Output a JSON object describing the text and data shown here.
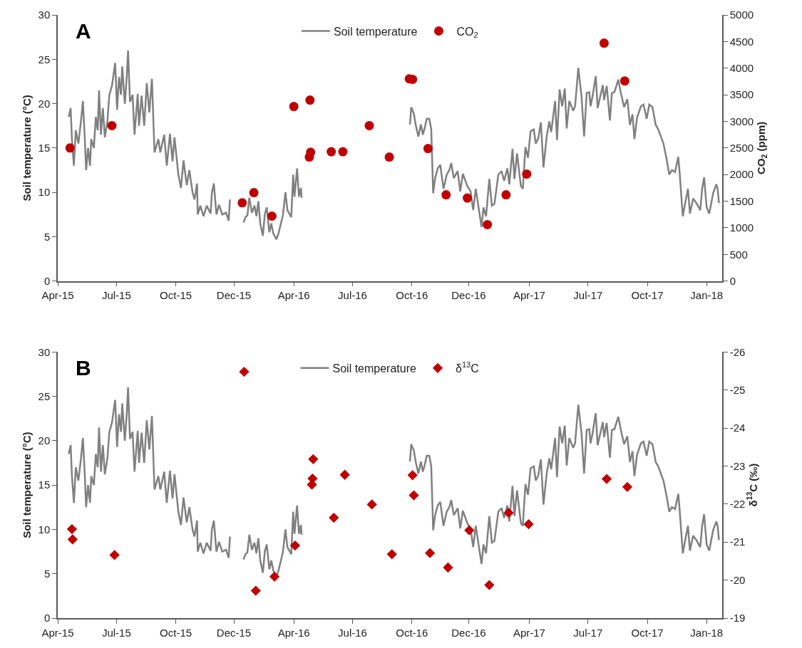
{
  "chart_data": [
    {
      "type": "line",
      "title": "A",
      "ylabel": "Soil temperature (°C)",
      "y2label": "CO$_{2}$ (ppm)",
      "legend": "top",
      "xlim": [
        "2015-04-01",
        "2018-01-25"
      ],
      "xticks": [
        {
          "value": "2015-04-01",
          "label": "Apr-15"
        },
        {
          "value": "2015-07-01",
          "label": "Jul-15"
        },
        {
          "value": "2015-10-01",
          "label": "Oct-15"
        },
        {
          "value": "2015-12-30",
          "label": "Dec-15"
        },
        {
          "value": "2016-04-01",
          "label": "Apr-16"
        },
        {
          "value": "2016-07-01",
          "label": "Jul-16"
        },
        {
          "value": "2016-10-01",
          "label": "Oct-16"
        },
        {
          "value": "2016-12-28",
          "label": "Dec-16"
        },
        {
          "value": "2017-04-01",
          "label": "Apr-17"
        },
        {
          "value": "2017-07-01",
          "label": "Jul-17"
        },
        {
          "value": "2017-10-01",
          "label": "Oct-17"
        },
        {
          "value": "2018-01-01",
          "label": "Jan-18"
        }
      ],
      "ylim": [
        0,
        30
      ],
      "yticks": [
        0,
        5,
        10,
        15,
        20,
        25,
        30
      ],
      "y2lim": [
        0,
        5000
      ],
      "y2ticks": [
        0,
        500,
        1000,
        1500,
        2000,
        2500,
        3000,
        3500,
        4000,
        4500,
        5000
      ],
      "series": [
        {
          "name": "Soil temperature",
          "color": "#808080",
          "x": [
            "2015-04-18",
            "2015-04-21",
            "2015-04-23",
            "2015-04-26",
            "2015-04-29",
            "2015-05-03",
            "2015-05-07",
            "2015-05-10",
            "2015-05-13",
            "2015-05-15",
            "2015-05-18",
            "2015-05-21",
            "2015-05-23",
            "2015-05-27",
            "2015-05-30",
            "2015-06-02",
            "2015-06-04",
            "2015-06-07",
            "2015-06-10",
            "2015-06-13",
            "2015-06-17",
            "2015-06-20",
            "2015-06-24",
            "2015-06-29",
            "2015-07-02",
            "2015-07-05",
            "2015-07-08",
            "2015-07-10",
            "2015-07-14",
            "2015-07-17",
            "2015-07-19",
            "2015-07-22",
            "2015-07-26",
            "2015-07-29",
            "2015-08-03",
            "2015-08-05",
            "2015-08-09",
            "2015-08-13",
            "2015-08-17",
            "2015-08-21",
            "2015-08-25",
            "2015-08-29",
            "2015-09-04",
            "2015-09-07",
            "2015-09-13",
            "2015-09-17",
            "2015-09-22",
            "2015-09-26",
            "2015-09-29",
            "2015-10-05",
            "2015-10-09",
            "2015-10-13",
            "2015-10-18",
            "2015-10-22",
            "2015-10-27",
            "2015-10-30",
            "2015-11-03",
            "2015-11-04",
            "2015-11-08",
            "2015-11-13",
            "2015-11-18",
            "2015-11-24",
            "2015-11-26",
            "2015-11-29",
            "2015-12-03",
            "2015-12-07",
            "2015-12-12",
            "2015-12-18",
            "2015-12-22",
            "2015-12-24",
            "2016-01-01",
            "2016-01-14",
            "2016-01-17",
            "2016-01-20",
            "2016-01-23",
            "2016-01-27",
            "2016-01-31",
            "2016-02-03",
            "2016-02-06",
            "2016-02-09",
            "2016-02-13",
            "2016-02-16",
            "2016-02-19",
            "2016-02-23",
            "2016-02-26",
            "2016-02-29",
            "2016-03-05",
            "2016-03-08",
            "2016-03-12",
            "2016-03-15",
            "2016-03-19",
            "2016-03-22",
            "2016-03-28",
            "2016-03-31",
            "2016-04-02",
            "2016-04-06",
            "2016-04-09",
            "2016-04-12",
            "2016-04-13",
            "2016-06-01",
            "2016-09-28",
            "2016-09-30",
            "2016-10-04",
            "2016-10-07",
            "2016-10-11",
            "2016-10-15",
            "2016-10-18",
            "2016-10-21",
            "2016-10-24",
            "2016-10-28",
            "2016-10-31",
            "2016-11-03",
            "2016-11-06",
            "2016-11-10",
            "2016-11-14",
            "2016-11-19",
            "2016-11-24",
            "2016-11-28",
            "2016-12-01",
            "2016-12-05",
            "2016-12-11",
            "2016-12-15",
            "2016-12-19",
            "2016-12-26",
            "2016-12-31",
            "2017-01-04",
            "2017-01-08",
            "2017-01-13",
            "2017-01-17",
            "2017-01-20",
            "2017-01-24",
            "2017-01-29",
            "2017-02-02",
            "2017-02-06",
            "2017-02-12",
            "2017-02-17",
            "2017-02-21",
            "2017-02-26",
            "2017-03-01",
            "2017-03-06",
            "2017-03-09",
            "2017-03-13",
            "2017-03-19",
            "2017-03-22",
            "2017-03-26",
            "2017-03-30",
            "2017-04-03",
            "2017-04-08",
            "2017-04-11",
            "2017-04-15",
            "2017-04-19",
            "2017-04-23",
            "2017-04-28",
            "2017-05-02",
            "2017-05-05",
            "2017-05-11",
            "2017-05-14",
            "2017-05-18",
            "2017-05-22",
            "2017-05-26",
            "2017-05-29",
            "2017-06-02",
            "2017-06-08",
            "2017-06-11",
            "2017-06-16",
            "2017-06-21",
            "2017-06-25",
            "2017-06-29",
            "2017-07-03",
            "2017-07-05",
            "2017-07-08",
            "2017-07-13",
            "2017-07-16",
            "2017-07-20",
            "2017-07-24",
            "2017-07-26",
            "2017-07-30",
            "2017-08-04",
            "2017-08-07",
            "2017-08-11",
            "2017-08-17",
            "2017-08-21",
            "2017-08-26",
            "2017-08-31",
            "2017-09-04",
            "2017-09-08",
            "2017-09-11",
            "2017-09-15",
            "2017-09-21",
            "2017-09-25",
            "2017-09-30",
            "2017-10-04",
            "2017-10-09",
            "2017-10-14",
            "2017-10-18",
            "2017-10-22",
            "2017-10-26",
            "2017-10-31",
            "2017-11-04",
            "2017-11-08",
            "2017-11-13",
            "2017-11-18",
            "2017-11-20",
            "2017-11-25",
            "2017-11-30",
            "2017-12-03",
            "2017-12-06",
            "2017-12-11",
            "2017-12-16",
            "2017-12-22",
            "2017-12-25",
            "2017-12-28",
            "2018-01-01",
            "2018-01-05",
            "2018-01-11",
            "2018-01-16",
            "2018-01-18",
            "2018-01-20"
          ],
          "values": [
            18.5,
            19.5,
            16,
            13,
            17,
            15.5,
            18,
            20.3,
            16,
            12.5,
            15,
            13,
            16,
            15,
            18.5,
            17,
            21.5,
            16.5,
            19.5,
            16.2,
            18,
            21,
            22,
            24.6,
            19.3,
            23,
            21,
            24.2,
            20,
            23,
            26,
            20.2,
            21,
            16.5,
            21.1,
            17.5,
            20.9,
            17.5,
            22.3,
            19,
            22.8,
            14.5,
            16,
            14.5,
            16.5,
            13,
            16.6,
            13.5,
            16.2,
            12,
            10.5,
            13.6,
            10.8,
            12.5,
            10,
            9.2,
            11,
            7.5,
            8.5,
            7.3,
            8.5,
            7.6,
            10,
            11,
            7.5,
            8.6,
            7.5,
            7.7,
            6.8,
            9.2,
            null,
            6.6,
            7.2,
            7.4,
            9.4,
            7.7,
            8.5,
            7.3,
            9,
            6.5,
            5.1,
            7.5,
            8.3,
            5.5,
            6.5,
            5.4,
            4.7,
            5.3,
            6.5,
            7.4,
            10,
            8,
            7.2,
            12,
            9.5,
            12.7,
            9.5,
            10.5,
            9.4,
            null,
            17.65,
            19.6,
            18.9,
            17.6,
            16.3,
            17.65,
            16.5,
            17.3,
            18.3,
            18.3,
            17.1,
            9.9,
            11.6,
            12.7,
            13.1,
            10.4,
            12,
            12.5,
            13.3,
            11.6,
            12.4,
            10.1,
            12.1,
            10.7,
            10.1,
            8,
            10.4,
            8,
            6.1,
            8.3,
            7.3,
            11.5,
            8.5,
            8.7,
            12,
            12.4,
            11.3,
            12.7,
            10.9,
            14.9,
            11.5,
            14.4,
            10.7,
            10.4,
            15.1,
            13.9,
            16.9,
            17.1,
            15.5,
            16.1,
            17.9,
            12.8,
            16.3,
            18,
            16.8,
            20.3,
            15.9,
            21.6,
            19.7,
            21.7,
            17.2,
            20.3,
            19.2,
            19.7,
            24.05,
            20.8,
            16.3,
            21.2,
            21.3,
            19.7,
            20.8,
            23.1,
            19.5,
            20.8,
            22.1,
            20.4,
            22,
            18.1,
            21.2,
            21.3,
            22.7,
            21.2,
            19.6,
            20.5,
            17.6,
            18.8,
            16,
            18.4,
            19.7,
            19.9,
            18.3,
            19.9,
            19.6,
            17.6,
            17.1,
            16.3,
            15.5,
            13.7,
            12,
            12.5,
            12.3,
            14,
            12.3,
            7.3,
            9.3,
            10.4,
            7.6,
            9.3,
            8.8,
            8,
            10.4,
            11.7,
            8.3,
            7.6,
            9.9,
            10.9,
            10.4,
            8.8
          ]
        },
        {
          "name": "CO$_{2}$",
          "type": "scatter",
          "axis": "y2",
          "marker": "circle",
          "color": "#c00000",
          "x": [
            "2015-04-20",
            "2015-06-24",
            "2016-01-12",
            "2016-01-30",
            "2016-02-27",
            "2016-04-01",
            "2016-04-26",
            "2016-04-27",
            "2016-04-25",
            "2016-05-29",
            "2016-06-16",
            "2016-07-27",
            "2016-08-27",
            "2016-09-27",
            "2016-10-02",
            "2016-10-26",
            "2016-11-23",
            "2016-12-26",
            "2017-01-26",
            "2017-02-24",
            "2017-03-28",
            "2017-07-26",
            "2017-08-27"
          ],
          "values": [
            2500,
            2920,
            1470,
            1660,
            1220,
            3280,
            3400,
            2420,
            2330,
            2430,
            2430,
            2920,
            2330,
            3800,
            3790,
            2490,
            1620,
            1560,
            1060,
            1620,
            2010,
            4470,
            3760
          ]
        }
      ]
    },
    {
      "type": "line",
      "title": "B",
      "ylabel": "Soil temperature (°C)",
      "y2label": "δ$^{13}$C (‰)",
      "legend": "top",
      "xlim": [
        "2015-04-01",
        "2018-01-25"
      ],
      "xticks": [
        {
          "value": "2015-04-01",
          "label": "Apr-15"
        },
        {
          "value": "2015-07-01",
          "label": "Jul-15"
        },
        {
          "value": "2015-10-01",
          "label": "Oct-15"
        },
        {
          "value": "2015-12-30",
          "label": "Dec-15"
        },
        {
          "value": "2016-04-01",
          "label": "Apr-16"
        },
        {
          "value": "2016-07-01",
          "label": "Jul-16"
        },
        {
          "value": "2016-10-01",
          "label": "Oct-16"
        },
        {
          "value": "2016-12-28",
          "label": "Dec-16"
        },
        {
          "value": "2017-04-01",
          "label": "Apr-17"
        },
        {
          "value": "2017-07-01",
          "label": "Jul-17"
        },
        {
          "value": "2017-10-01",
          "label": "Oct-17"
        },
        {
          "value": "2018-01-01",
          "label": "Jan-18"
        }
      ],
      "ylim": [
        0,
        30
      ],
      "yticks": [
        0,
        5,
        10,
        15,
        20,
        25,
        30
      ],
      "y2lim": [
        -19,
        -26
      ],
      "y2ticks": [
        -19,
        -20,
        -21,
        -22,
        -23,
        -24,
        -25,
        -26
      ],
      "series": [
        {
          "name": "Soil temperature",
          "color": "#808080",
          "x": [
            "2015-04-18",
            "2015-04-21",
            "2015-04-23",
            "2015-04-26",
            "2015-04-29",
            "2015-05-03",
            "2015-05-07",
            "2015-05-10",
            "2015-05-13",
            "2015-05-15",
            "2015-05-18",
            "2015-05-21",
            "2015-05-23",
            "2015-05-27",
            "2015-05-30",
            "2015-06-02",
            "2015-06-04",
            "2015-06-07",
            "2015-06-10",
            "2015-06-13",
            "2015-06-17",
            "2015-06-20",
            "2015-06-24",
            "2015-06-29",
            "2015-07-02",
            "2015-07-05",
            "2015-07-08",
            "2015-07-10",
            "2015-07-14",
            "2015-07-17",
            "2015-07-19",
            "2015-07-22",
            "2015-07-26",
            "2015-07-29",
            "2015-08-03",
            "2015-08-05",
            "2015-08-09",
            "2015-08-13",
            "2015-08-17",
            "2015-08-21",
            "2015-08-25",
            "2015-08-29",
            "2015-09-04",
            "2015-09-07",
            "2015-09-13",
            "2015-09-17",
            "2015-09-22",
            "2015-09-26",
            "2015-09-29",
            "2015-10-05",
            "2015-10-09",
            "2015-10-13",
            "2015-10-18",
            "2015-10-22",
            "2015-10-27",
            "2015-10-30",
            "2015-11-03",
            "2015-11-04",
            "2015-11-08",
            "2015-11-13",
            "2015-11-18",
            "2015-11-24",
            "2015-11-26",
            "2015-11-29",
            "2015-12-03",
            "2015-12-07",
            "2015-12-12",
            "2015-12-18",
            "2015-12-22",
            "2015-12-24",
            "2016-01-01",
            "2016-01-14",
            "2016-01-17",
            "2016-01-20",
            "2016-01-23",
            "2016-01-27",
            "2016-01-31",
            "2016-02-03",
            "2016-02-06",
            "2016-02-09",
            "2016-02-13",
            "2016-02-16",
            "2016-02-19",
            "2016-02-23",
            "2016-02-26",
            "2016-02-29",
            "2016-03-05",
            "2016-03-08",
            "2016-03-12",
            "2016-03-15",
            "2016-03-19",
            "2016-03-22",
            "2016-03-28",
            "2016-03-31",
            "2016-04-02",
            "2016-04-06",
            "2016-04-09",
            "2016-04-12",
            "2016-04-13",
            "2016-06-01",
            "2016-09-28",
            "2016-09-30",
            "2016-10-04",
            "2016-10-07",
            "2016-10-11",
            "2016-10-15",
            "2016-10-18",
            "2016-10-21",
            "2016-10-24",
            "2016-10-28",
            "2016-10-31",
            "2016-11-03",
            "2016-11-06",
            "2016-11-10",
            "2016-11-14",
            "2016-11-19",
            "2016-11-24",
            "2016-11-28",
            "2016-12-01",
            "2016-12-05",
            "2016-12-11",
            "2016-12-15",
            "2016-12-19",
            "2016-12-26",
            "2016-12-31",
            "2017-01-04",
            "2017-01-08",
            "2017-01-13",
            "2017-01-17",
            "2017-01-20",
            "2017-01-24",
            "2017-01-29",
            "2017-02-02",
            "2017-02-06",
            "2017-02-12",
            "2017-02-17",
            "2017-02-21",
            "2017-02-26",
            "2017-03-01",
            "2017-03-06",
            "2017-03-09",
            "2017-03-13",
            "2017-03-19",
            "2017-03-22",
            "2017-03-26",
            "2017-03-30",
            "2017-04-03",
            "2017-04-08",
            "2017-04-11",
            "2017-04-15",
            "2017-04-19",
            "2017-04-23",
            "2017-04-28",
            "2017-05-02",
            "2017-05-05",
            "2017-05-11",
            "2017-05-14",
            "2017-05-18",
            "2017-05-22",
            "2017-05-26",
            "2017-05-29",
            "2017-06-02",
            "2017-06-08",
            "2017-06-11",
            "2017-06-16",
            "2017-06-21",
            "2017-06-25",
            "2017-06-29",
            "2017-07-03",
            "2017-07-05",
            "2017-07-08",
            "2017-07-13",
            "2017-07-16",
            "2017-07-20",
            "2017-07-24",
            "2017-07-26",
            "2017-07-30",
            "2017-08-04",
            "2017-08-07",
            "2017-08-11",
            "2017-08-17",
            "2017-08-21",
            "2017-08-26",
            "2017-08-31",
            "2017-09-04",
            "2017-09-08",
            "2017-09-11",
            "2017-09-15",
            "2017-09-21",
            "2017-09-25",
            "2017-09-30",
            "2017-10-04",
            "2017-10-09",
            "2017-10-14",
            "2017-10-18",
            "2017-10-22",
            "2017-10-26",
            "2017-10-31",
            "2017-11-04",
            "2017-11-08",
            "2017-11-13",
            "2017-11-18",
            "2017-11-20",
            "2017-11-25",
            "2017-11-30",
            "2017-12-03",
            "2017-12-06",
            "2017-12-11",
            "2017-12-16",
            "2017-12-22",
            "2017-12-25",
            "2017-12-28",
            "2018-01-01",
            "2018-01-05",
            "2018-01-11",
            "2018-01-16",
            "2018-01-18",
            "2018-01-20"
          ],
          "values": [
            18.5,
            19.5,
            16,
            13,
            17,
            15.5,
            18,
            20.3,
            16,
            12.5,
            15,
            13,
            16,
            15,
            18.5,
            17,
            21.5,
            16.5,
            19.5,
            16.2,
            18,
            21,
            22,
            24.6,
            19.3,
            23,
            21,
            24.2,
            20,
            23,
            26,
            20.2,
            21,
            16.5,
            21.1,
            17.5,
            20.9,
            17.5,
            22.3,
            19,
            22.8,
            14.5,
            16,
            14.5,
            16.5,
            13,
            16.6,
            13.5,
            16.2,
            12,
            10.5,
            13.6,
            10.8,
            12.5,
            10,
            9.2,
            11,
            7.5,
            8.5,
            7.3,
            8.5,
            7.6,
            10,
            11,
            7.5,
            8.6,
            7.5,
            7.7,
            6.8,
            9.2,
            null,
            6.6,
            7.2,
            7.4,
            9.4,
            7.7,
            8.5,
            7.3,
            9,
            6.5,
            5.1,
            7.5,
            8.3,
            5.5,
            6.5,
            5.4,
            4.7,
            5.3,
            6.5,
            7.4,
            10,
            8,
            7.2,
            12,
            9.5,
            12.7,
            9.5,
            10.5,
            9.4,
            null,
            17.65,
            19.6,
            18.9,
            17.6,
            16.3,
            17.65,
            16.5,
            17.3,
            18.3,
            18.3,
            17.1,
            9.9,
            11.6,
            12.7,
            13.1,
            10.4,
            12,
            12.5,
            13.3,
            11.6,
            12.4,
            10.1,
            12.1,
            10.7,
            10.1,
            8,
            10.4,
            8,
            6.1,
            8.3,
            7.3,
            11.5,
            8.5,
            8.7,
            12,
            12.4,
            11.3,
            12.7,
            10.9,
            14.9,
            11.5,
            14.4,
            10.7,
            10.4,
            15.1,
            13.9,
            16.9,
            17.1,
            15.5,
            16.1,
            17.9,
            12.8,
            16.3,
            18,
            16.8,
            20.3,
            15.9,
            21.6,
            19.7,
            21.7,
            17.2,
            20.3,
            19.2,
            19.7,
            24.05,
            20.8,
            16.3,
            21.2,
            21.3,
            19.7,
            20.8,
            23.1,
            19.5,
            20.8,
            22.1,
            20.4,
            22,
            18.1,
            21.2,
            21.3,
            22.7,
            21.2,
            19.6,
            20.5,
            17.6,
            18.8,
            16,
            18.4,
            19.7,
            19.9,
            18.3,
            19.9,
            19.6,
            17.6,
            17.1,
            16.3,
            15.5,
            13.7,
            12,
            12.5,
            12.3,
            14,
            12.3,
            7.3,
            9.3,
            10.4,
            7.6,
            9.3,
            8.8,
            8,
            10.4,
            11.7,
            8.3,
            7.6,
            9.9,
            10.9,
            10.4,
            8.8
          ]
        },
        {
          "name": "δ$^{13}$C",
          "type": "scatter",
          "axis": "y2",
          "marker": "diamond",
          "color": "#c00000",
          "x": [
            "2015-04-23",
            "2015-04-24",
            "2015-06-28",
            "2016-01-15",
            "2016-02-02",
            "2016-03-02",
            "2016-04-03",
            "2016-05-01",
            "2016-04-30",
            "2016-04-29",
            "2016-06-02",
            "2016-06-19",
            "2016-07-31",
            "2016-08-31",
            "2016-10-02",
            "2016-10-04",
            "2016-10-29",
            "2016-11-26",
            "2016-12-29",
            "2017-01-29",
            "2017-02-28",
            "2017-03-31",
            "2017-07-30",
            "2017-08-31"
          ],
          "values": [
            -21.34,
            -21.07,
            -20.66,
            -25.48,
            -19.72,
            -20.09,
            -20.91,
            -23.18,
            -22.67,
            -22.51,
            -21.64,
            -22.77,
            -21.99,
            -20.68,
            -22.76,
            -22.23,
            -20.71,
            -20.33,
            -21.31,
            -19.87,
            -21.77,
            -21.47,
            -22.66,
            -22.45
          ]
        }
      ]
    }
  ]
}
